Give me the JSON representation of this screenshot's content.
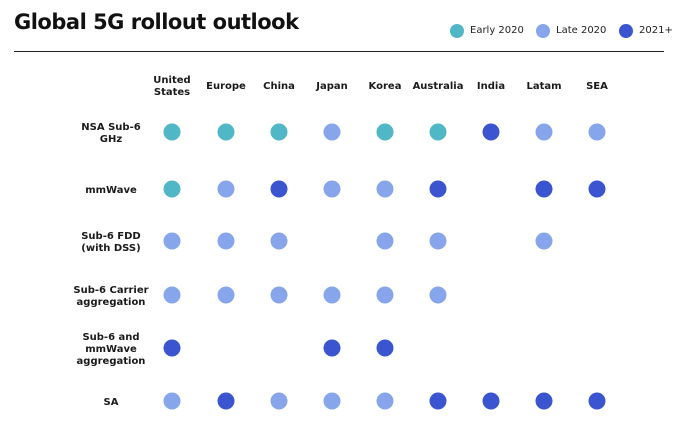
{
  "title": "Global 5G rollout outlook",
  "colors": {
    "early_2020": "#4fb7c5",
    "late_2020": "#87a5ea",
    "later": "#3a55cf"
  },
  "chart_data": {
    "type": "table",
    "title": "Global 5G rollout outlook",
    "legend": [
      {
        "key": "early",
        "label": "Early 2020",
        "color": "#4fb7c5"
      },
      {
        "key": "late",
        "label": "Late 2020",
        "color": "#87a5ea"
      },
      {
        "key": "later",
        "label": "2021+",
        "color": "#3a55cf"
      }
    ],
    "legend_position": "top-right",
    "columns": [
      [
        "United",
        "States"
      ],
      [
        "Europe"
      ],
      [
        "China"
      ],
      [
        "Japan"
      ],
      [
        "Korea"
      ],
      [
        "Australia"
      ],
      [
        "India"
      ],
      [
        "Latam"
      ],
      [
        "SEA"
      ]
    ],
    "rows": [
      {
        "label": [
          "NSA Sub-6",
          "GHz"
        ],
        "values": [
          "early",
          "early",
          "early",
          "late",
          "early",
          "early",
          "later",
          "late",
          "late"
        ]
      },
      {
        "label": [
          "mmWave"
        ],
        "values": [
          "early",
          "late",
          "later",
          "late",
          "late",
          "later",
          null,
          "later",
          "later"
        ]
      },
      {
        "label": [
          "Sub-6 FDD",
          "(with DSS)"
        ],
        "values": [
          "late",
          "late",
          "late",
          null,
          "late",
          "late",
          null,
          "late",
          null
        ]
      },
      {
        "label": [
          "Sub-6 Carrier",
          "aggregation"
        ],
        "values": [
          "late",
          "late",
          "late",
          "late",
          "late",
          "late",
          null,
          null,
          null
        ]
      },
      {
        "label": [
          "Sub-6 and",
          "mmWave",
          "aggregation"
        ],
        "values": [
          "later",
          null,
          null,
          "later",
          "later",
          null,
          null,
          null,
          null
        ]
      },
      {
        "label": [
          "SA"
        ],
        "values": [
          "late",
          "later",
          "late",
          "late",
          "late",
          "later",
          "later",
          "later",
          "later"
        ]
      }
    ]
  }
}
